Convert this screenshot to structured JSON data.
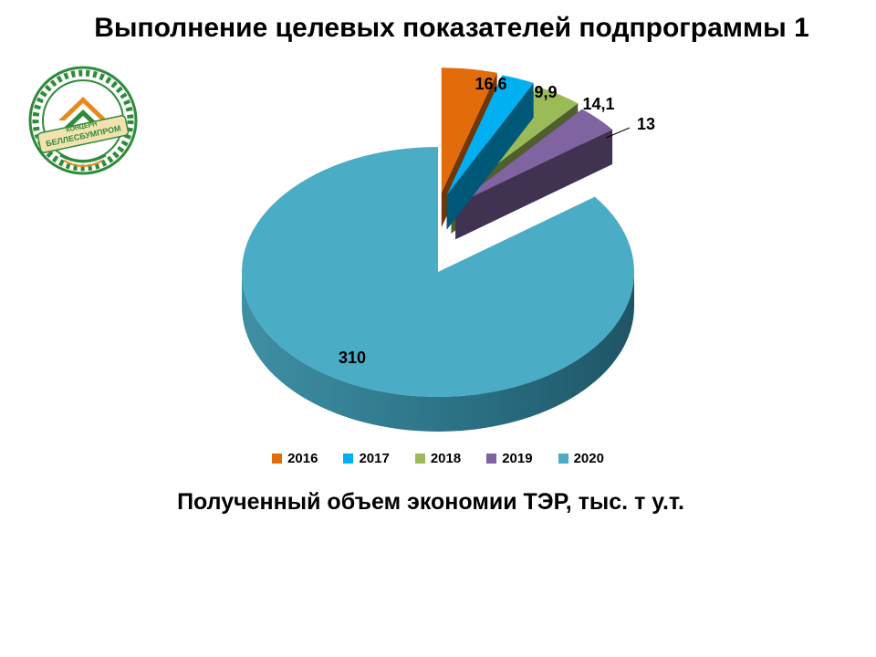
{
  "page": {
    "title": "Выполнение целевых показателей подпрограммы 1",
    "caption": "Полученный объем экономии ТЭР, тыс. т у.т."
  },
  "logo": {
    "icon": "beleslumprom-logo-icon",
    "text_top": "КОНЦЕРН",
    "text_main": "БЕЛЛЕСБУМПРОМ",
    "colors": {
      "green": "#2e8b3a",
      "orange": "#e8891c",
      "cream": "#f3e2b0"
    }
  },
  "chart_data": {
    "type": "pie",
    "style": "3d-exploded",
    "title": "",
    "categories": [
      "2016",
      "2017",
      "2018",
      "2019",
      "2020"
    ],
    "values": [
      16.6,
      9.9,
      14.1,
      13,
      310
    ],
    "value_labels": [
      "16,6",
      "9,9",
      "14,1",
      "13",
      "310"
    ],
    "colors": [
      "#e36c0a",
      "#00b0f0",
      "#9bbb59",
      "#8064a2",
      "#4bacc6"
    ],
    "legend": {
      "position": "bottom",
      "entries": [
        "2016",
        "2017",
        "2018",
        "2019",
        "2020"
      ]
    }
  }
}
